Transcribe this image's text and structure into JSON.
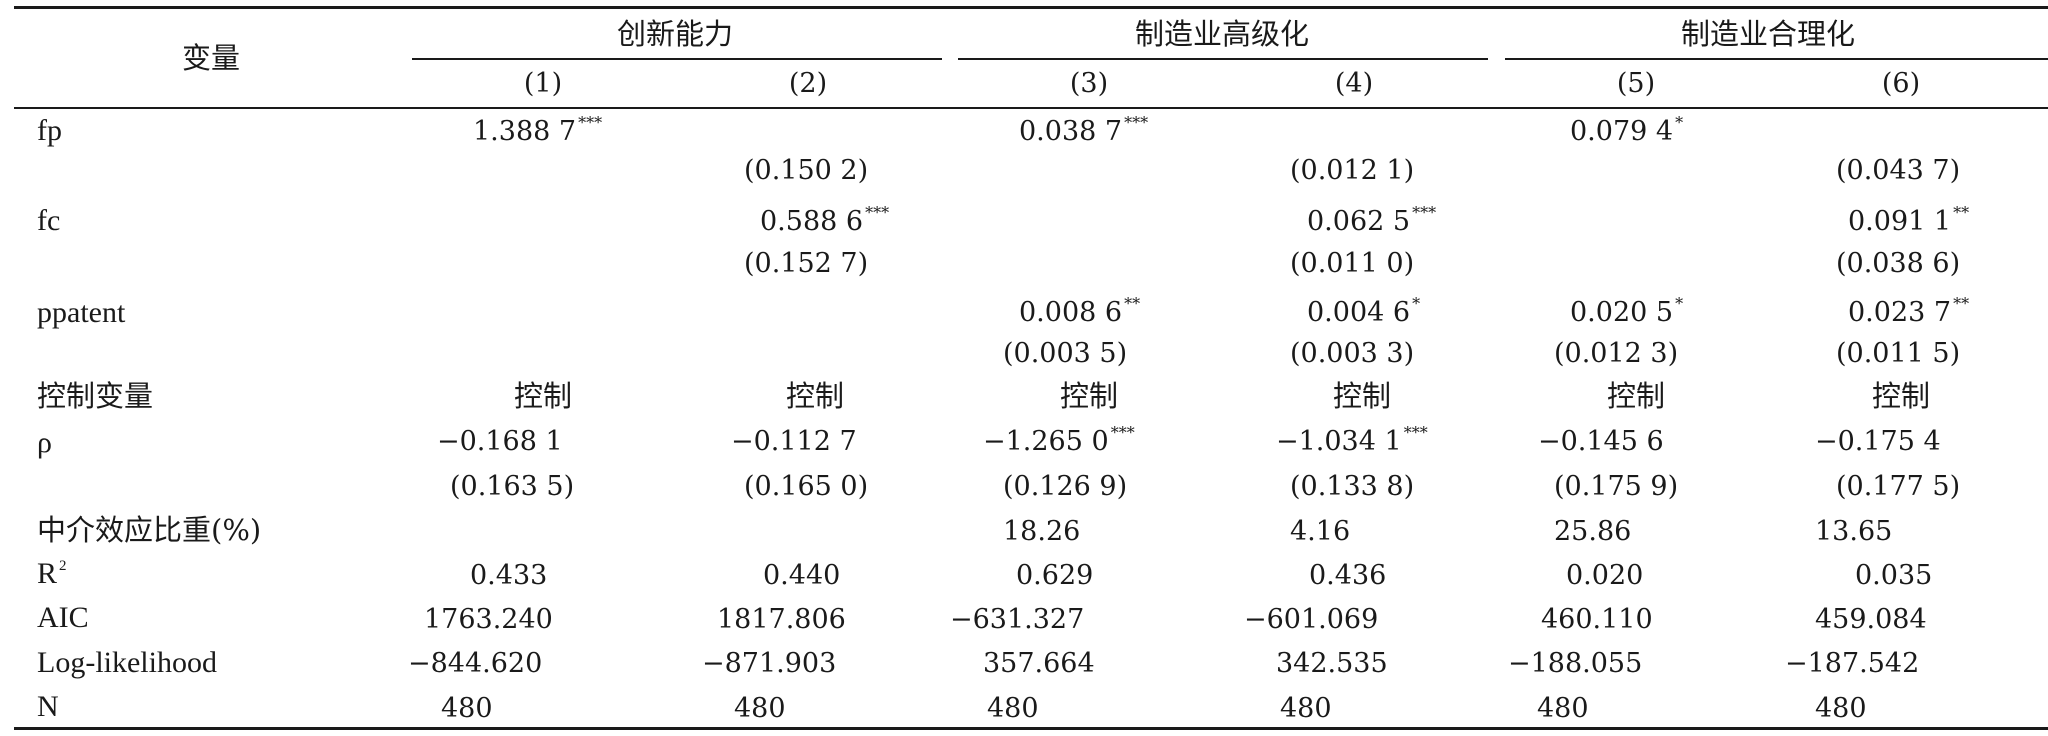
{
  "table": {
    "corner_header": "变量",
    "groups": [
      "创新能力",
      "制造业高级化",
      "制造业合理化"
    ],
    "columns": [
      "(1)",
      "(2)",
      "(3)",
      "(4)",
      "(5)",
      "(6)"
    ],
    "rows": {
      "fp": {
        "label": "fp",
        "coef": {
          "c1": "1.388 7",
          "c3": "0.038 7",
          "c5": "0.079 4"
        },
        "sig": {
          "c1": "***",
          "c3": "***",
          "c5": "*"
        },
        "se": {
          "c2": "(0.150 2)",
          "c4": "(0.012 1)",
          "c6": "(0.043 7)"
        }
      },
      "fc": {
        "label": "fc",
        "coef": {
          "c2": "0.588 6",
          "c4": "0.062 5",
          "c6": "0.091 1"
        },
        "sig": {
          "c2": "***",
          "c4": "***",
          "c6": "**"
        },
        "se": {
          "c2": "(0.152 7)",
          "c4": "(0.011 0)",
          "c6": "(0.038 6)"
        }
      },
      "ppatent": {
        "label": "ppatent",
        "coef": {
          "c3": "0.008 6",
          "c4": "0.004 6",
          "c5": "0.020 5",
          "c6": "0.023 7"
        },
        "sig": {
          "c3": "**",
          "c4": "*",
          "c5": "*",
          "c6": "**"
        },
        "se": {
          "c3": "(0.003 5)",
          "c4": "(0.003 3)",
          "c5": "(0.012 3)",
          "c6": "(0.011 5)"
        }
      },
      "controls": {
        "label": "控制变量",
        "values": {
          "c1": "控制",
          "c2": "控制",
          "c3": "控制",
          "c4": "控制",
          "c5": "控制",
          "c6": "控制"
        }
      },
      "rho": {
        "label": "ρ",
        "coef": {
          "c1": "−0.168 1",
          "c2": "−0.112 7",
          "c3": "−1.265 0",
          "c4": "−1.034 1",
          "c5": "−0.145 6",
          "c6": "−0.175 4"
        },
        "sig": {
          "c3": "***",
          "c4": "***"
        },
        "se": {
          "c1": "(0.163 5)",
          "c2": "(0.165 0)",
          "c3": "(0.126 9)",
          "c4": "(0.133 8)",
          "c5": "(0.175 9)",
          "c6": "(0.177 5)"
        }
      },
      "mediation": {
        "label": "中介效应比重(%)",
        "values": {
          "c3": "18.26",
          "c4": "4.16",
          "c5": "25.86",
          "c6": "13.65"
        }
      },
      "r2": {
        "label": "R",
        "label_sup": "2",
        "values": {
          "c1": "0.433",
          "c2": "0.440",
          "c3": "0.629",
          "c4": "0.436",
          "c5": "0.020",
          "c6": "0.035"
        }
      },
      "aic": {
        "label": "AIC",
        "values": {
          "c1": "1763.240",
          "c2": "1817.806",
          "c3": "−631.327",
          "c4": "−601.069",
          "c5": "460.110",
          "c6": "459.084"
        }
      },
      "loglik": {
        "label": "Log-likelihood",
        "values": {
          "c1": "−844.620",
          "c2": "−871.903",
          "c3": "357.664",
          "c4": "342.535",
          "c5": "−188.055",
          "c6": "−187.542"
        }
      },
      "n": {
        "label": "N",
        "values": {
          "c1": "480",
          "c2": "480",
          "c3": "480",
          "c4": "480",
          "c5": "480",
          "c6": "480"
        }
      }
    }
  }
}
